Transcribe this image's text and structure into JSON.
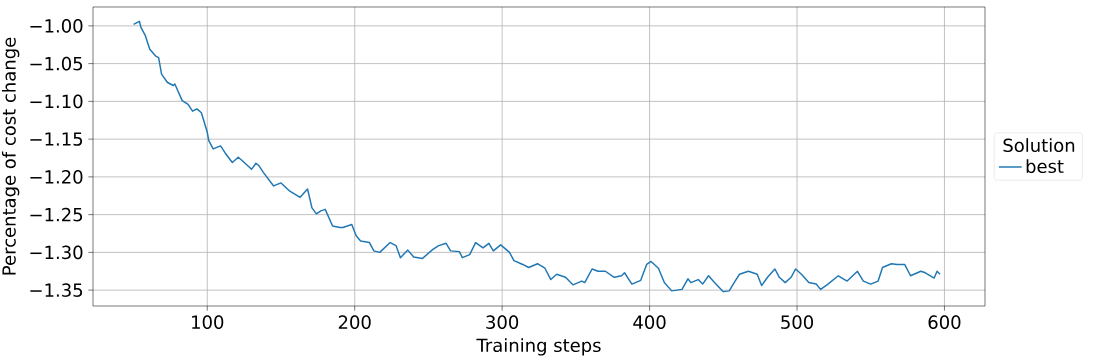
{
  "chart_data": {
    "type": "line",
    "xlabel": "Training steps",
    "ylabel": "Percentage of cost change",
    "legend_title": "Solution",
    "legend": "right",
    "grid": true,
    "xlim": [
      22.5,
      627.5
    ],
    "ylim": [
      -1.371,
      -0.975
    ],
    "xticks": [
      100,
      200,
      300,
      400,
      500,
      600
    ],
    "yticks": [
      {
        "value": -1.35,
        "label": "−1.35"
      },
      {
        "value": -1.3,
        "label": "−1.30"
      },
      {
        "value": -1.25,
        "label": "−1.25"
      },
      {
        "value": -1.2,
        "label": "−1.20"
      },
      {
        "value": -1.15,
        "label": "−1.15"
      },
      {
        "value": -1.1,
        "label": "−1.10"
      },
      {
        "value": -1.05,
        "label": "−1.05"
      },
      {
        "value": -1.0,
        "label": "−1.00"
      }
    ],
    "series": [
      {
        "name": "best",
        "color": "#1f77b4",
        "x": [
          50,
          54,
          55,
          58,
          61,
          65,
          67,
          69,
          73,
          77,
          78,
          83,
          87,
          90,
          93,
          96,
          100,
          101,
          104,
          109,
          112,
          117,
          121,
          124,
          130,
          133,
          135,
          138,
          145,
          150,
          156,
          163,
          168,
          171,
          174,
          177,
          180,
          185,
          190,
          192,
          198,
          201,
          204,
          210,
          213,
          217,
          224,
          228,
          231,
          236,
          240,
          246,
          253,
          257,
          262,
          265,
          271,
          273,
          278,
          282,
          287,
          291,
          294,
          299,
          305,
          308,
          314,
          318,
          324,
          329,
          333,
          337,
          343,
          348,
          354,
          356,
          361,
          365,
          370,
          376,
          381,
          383,
          388,
          394,
          398,
          401,
          406,
          410,
          415,
          422,
          426,
          428,
          433,
          436,
          440,
          444,
          450,
          454,
          458,
          461,
          467,
          473,
          476,
          480,
          485,
          488,
          492,
          496,
          499,
          503,
          508,
          513,
          516,
          521,
          528,
          534,
          541,
          545,
          550,
          555,
          558,
          564,
          568,
          573,
          577,
          584,
          587,
          593,
          595,
          597
        ],
        "values": [
          -0.998,
          -0.994,
          -1.002,
          -1.013,
          -1.031,
          -1.04,
          -1.042,
          -1.064,
          -1.075,
          -1.079,
          -1.077,
          -1.099,
          -1.104,
          -1.113,
          -1.11,
          -1.115,
          -1.141,
          -1.152,
          -1.163,
          -1.159,
          -1.168,
          -1.181,
          -1.174,
          -1.179,
          -1.19,
          -1.182,
          -1.185,
          -1.194,
          -1.212,
          -1.208,
          -1.219,
          -1.227,
          -1.216,
          -1.241,
          -1.249,
          -1.245,
          -1.243,
          -1.265,
          -1.267,
          -1.267,
          -1.263,
          -1.278,
          -1.285,
          -1.287,
          -1.298,
          -1.3,
          -1.287,
          -1.291,
          -1.307,
          -1.297,
          -1.306,
          -1.308,
          -1.296,
          -1.291,
          -1.288,
          -1.298,
          -1.299,
          -1.307,
          -1.303,
          -1.287,
          -1.294,
          -1.288,
          -1.298,
          -1.29,
          -1.3,
          -1.311,
          -1.316,
          -1.32,
          -1.315,
          -1.321,
          -1.336,
          -1.329,
          -1.333,
          -1.343,
          -1.338,
          -1.34,
          -1.322,
          -1.325,
          -1.325,
          -1.333,
          -1.331,
          -1.327,
          -1.342,
          -1.337,
          -1.316,
          -1.312,
          -1.321,
          -1.34,
          -1.351,
          -1.349,
          -1.335,
          -1.34,
          -1.336,
          -1.342,
          -1.331,
          -1.34,
          -1.352,
          -1.351,
          -1.338,
          -1.329,
          -1.325,
          -1.329,
          -1.344,
          -1.333,
          -1.322,
          -1.333,
          -1.34,
          -1.333,
          -1.322,
          -1.329,
          -1.34,
          -1.342,
          -1.349,
          -1.342,
          -1.331,
          -1.338,
          -1.325,
          -1.338,
          -1.342,
          -1.338,
          -1.32,
          -1.315,
          -1.316,
          -1.316,
          -1.331,
          -1.325,
          -1.327,
          -1.334,
          -1.325,
          -1.329
        ]
      }
    ]
  }
}
